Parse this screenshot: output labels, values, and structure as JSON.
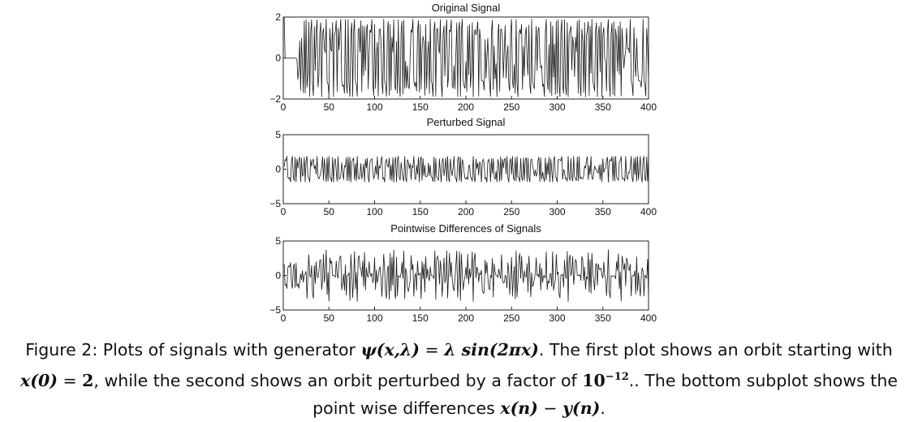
{
  "chart_data": [
    {
      "type": "line",
      "title": "Original Signal",
      "xlim": [
        0,
        400
      ],
      "ylim": [
        -2,
        2
      ],
      "xticks": [
        0,
        50,
        100,
        150,
        200,
        250,
        300,
        350,
        400
      ],
      "yticks": [
        -2,
        0,
        2
      ],
      "line_color": "#1a1a1a",
      "series": [
        {
          "generator": "lambda*sin(2*pi*x)",
          "x0": 2,
          "n_points": 400
        }
      ]
    },
    {
      "type": "line",
      "title": "Perturbed Signal",
      "xlim": [
        0,
        400
      ],
      "ylim": [
        -5,
        5
      ],
      "xticks": [
        0,
        50,
        100,
        150,
        200,
        250,
        300,
        350,
        400
      ],
      "yticks": [
        -5,
        0,
        5
      ],
      "line_color": "#1a1a1a",
      "series": [
        {
          "generator": "lambda*sin(2*pi*x)",
          "perturbation": 1e-12,
          "n_points": 400
        }
      ]
    },
    {
      "type": "line",
      "title": "Pointwise Differences of Signals",
      "xlim": [
        0,
        400
      ],
      "ylim": [
        -5,
        5
      ],
      "xticks": [
        0,
        50,
        100,
        150,
        200,
        250,
        300,
        350,
        400
      ],
      "yticks": [
        -5,
        0,
        5
      ],
      "line_color": "#1a1a1a",
      "series": [
        {
          "quantity": "x(n) - y(n)",
          "n_points": 400
        }
      ]
    }
  ],
  "caption": {
    "l1_a": "Figure 2: Plots of signals with generator ",
    "l1_psi": "ψ(x,λ)",
    "l1_eq": " = ",
    "l1_expr": "λ sin(2πx)",
    "l1_b": ". The first plot shows an orbit starting with",
    "l2_x0": "x(0)",
    "l2_eq": " = ",
    "l2_two": "2",
    "l2_b": ", while the second shows an orbit perturbed by a factor of ",
    "l2_pow_base": "10",
    "l2_pow_exp": "−12",
    "l2_c": ".. The bottom subplot shows the",
    "l3_a": "point wise differences ",
    "l3_xn": "x(n)",
    "l3_minus": " − ",
    "l3_yn": "y(n)",
    "l3_b": "."
  }
}
